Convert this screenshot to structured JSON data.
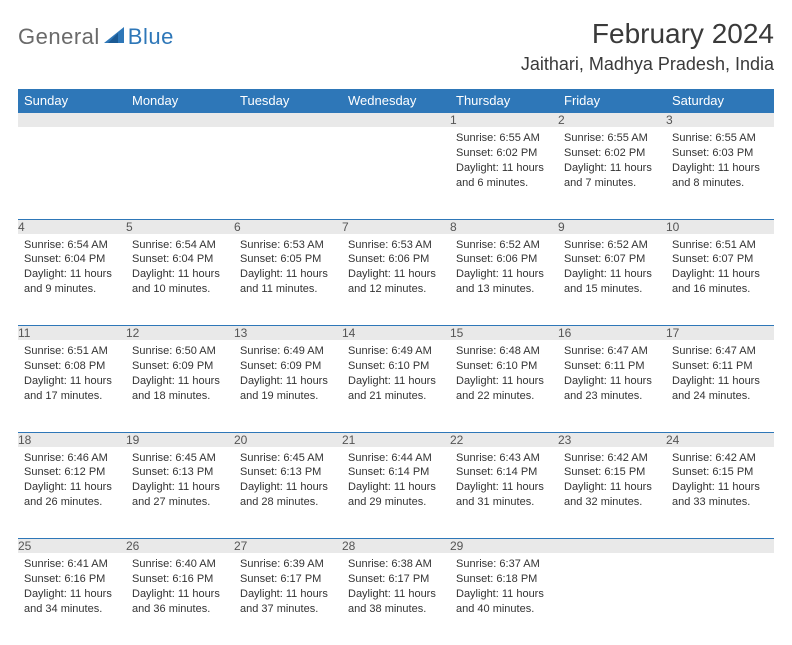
{
  "logo": {
    "general": "General",
    "blue": "Blue"
  },
  "header": {
    "month_title": "February 2024",
    "location": "Jaithari, Madhya Pradesh, India"
  },
  "colors": {
    "header_bg": "#2e77b8",
    "header_text": "#ffffff",
    "daynum_bg": "#e9e9e9",
    "body_text": "#333333",
    "rule": "#2e77b8"
  },
  "day_labels": [
    "Sunday",
    "Monday",
    "Tuesday",
    "Wednesday",
    "Thursday",
    "Friday",
    "Saturday"
  ],
  "weeks": [
    [
      null,
      null,
      null,
      null,
      {
        "n": "1",
        "sr": "Sunrise: 6:55 AM",
        "ss": "Sunset: 6:02 PM",
        "dl": "Daylight: 11 hours and 6 minutes."
      },
      {
        "n": "2",
        "sr": "Sunrise: 6:55 AM",
        "ss": "Sunset: 6:02 PM",
        "dl": "Daylight: 11 hours and 7 minutes."
      },
      {
        "n": "3",
        "sr": "Sunrise: 6:55 AM",
        "ss": "Sunset: 6:03 PM",
        "dl": "Daylight: 11 hours and 8 minutes."
      }
    ],
    [
      {
        "n": "4",
        "sr": "Sunrise: 6:54 AM",
        "ss": "Sunset: 6:04 PM",
        "dl": "Daylight: 11 hours and 9 minutes."
      },
      {
        "n": "5",
        "sr": "Sunrise: 6:54 AM",
        "ss": "Sunset: 6:04 PM",
        "dl": "Daylight: 11 hours and 10 minutes."
      },
      {
        "n": "6",
        "sr": "Sunrise: 6:53 AM",
        "ss": "Sunset: 6:05 PM",
        "dl": "Daylight: 11 hours and 11 minutes."
      },
      {
        "n": "7",
        "sr": "Sunrise: 6:53 AM",
        "ss": "Sunset: 6:06 PM",
        "dl": "Daylight: 11 hours and 12 minutes."
      },
      {
        "n": "8",
        "sr": "Sunrise: 6:52 AM",
        "ss": "Sunset: 6:06 PM",
        "dl": "Daylight: 11 hours and 13 minutes."
      },
      {
        "n": "9",
        "sr": "Sunrise: 6:52 AM",
        "ss": "Sunset: 6:07 PM",
        "dl": "Daylight: 11 hours and 15 minutes."
      },
      {
        "n": "10",
        "sr": "Sunrise: 6:51 AM",
        "ss": "Sunset: 6:07 PM",
        "dl": "Daylight: 11 hours and 16 minutes."
      }
    ],
    [
      {
        "n": "11",
        "sr": "Sunrise: 6:51 AM",
        "ss": "Sunset: 6:08 PM",
        "dl": "Daylight: 11 hours and 17 minutes."
      },
      {
        "n": "12",
        "sr": "Sunrise: 6:50 AM",
        "ss": "Sunset: 6:09 PM",
        "dl": "Daylight: 11 hours and 18 minutes."
      },
      {
        "n": "13",
        "sr": "Sunrise: 6:49 AM",
        "ss": "Sunset: 6:09 PM",
        "dl": "Daylight: 11 hours and 19 minutes."
      },
      {
        "n": "14",
        "sr": "Sunrise: 6:49 AM",
        "ss": "Sunset: 6:10 PM",
        "dl": "Daylight: 11 hours and 21 minutes."
      },
      {
        "n": "15",
        "sr": "Sunrise: 6:48 AM",
        "ss": "Sunset: 6:10 PM",
        "dl": "Daylight: 11 hours and 22 minutes."
      },
      {
        "n": "16",
        "sr": "Sunrise: 6:47 AM",
        "ss": "Sunset: 6:11 PM",
        "dl": "Daylight: 11 hours and 23 minutes."
      },
      {
        "n": "17",
        "sr": "Sunrise: 6:47 AM",
        "ss": "Sunset: 6:11 PM",
        "dl": "Daylight: 11 hours and 24 minutes."
      }
    ],
    [
      {
        "n": "18",
        "sr": "Sunrise: 6:46 AM",
        "ss": "Sunset: 6:12 PM",
        "dl": "Daylight: 11 hours and 26 minutes."
      },
      {
        "n": "19",
        "sr": "Sunrise: 6:45 AM",
        "ss": "Sunset: 6:13 PM",
        "dl": "Daylight: 11 hours and 27 minutes."
      },
      {
        "n": "20",
        "sr": "Sunrise: 6:45 AM",
        "ss": "Sunset: 6:13 PM",
        "dl": "Daylight: 11 hours and 28 minutes."
      },
      {
        "n": "21",
        "sr": "Sunrise: 6:44 AM",
        "ss": "Sunset: 6:14 PM",
        "dl": "Daylight: 11 hours and 29 minutes."
      },
      {
        "n": "22",
        "sr": "Sunrise: 6:43 AM",
        "ss": "Sunset: 6:14 PM",
        "dl": "Daylight: 11 hours and 31 minutes."
      },
      {
        "n": "23",
        "sr": "Sunrise: 6:42 AM",
        "ss": "Sunset: 6:15 PM",
        "dl": "Daylight: 11 hours and 32 minutes."
      },
      {
        "n": "24",
        "sr": "Sunrise: 6:42 AM",
        "ss": "Sunset: 6:15 PM",
        "dl": "Daylight: 11 hours and 33 minutes."
      }
    ],
    [
      {
        "n": "25",
        "sr": "Sunrise: 6:41 AM",
        "ss": "Sunset: 6:16 PM",
        "dl": "Daylight: 11 hours and 34 minutes."
      },
      {
        "n": "26",
        "sr": "Sunrise: 6:40 AM",
        "ss": "Sunset: 6:16 PM",
        "dl": "Daylight: 11 hours and 36 minutes."
      },
      {
        "n": "27",
        "sr": "Sunrise: 6:39 AM",
        "ss": "Sunset: 6:17 PM",
        "dl": "Daylight: 11 hours and 37 minutes."
      },
      {
        "n": "28",
        "sr": "Sunrise: 6:38 AM",
        "ss": "Sunset: 6:17 PM",
        "dl": "Daylight: 11 hours and 38 minutes."
      },
      {
        "n": "29",
        "sr": "Sunrise: 6:37 AM",
        "ss": "Sunset: 6:18 PM",
        "dl": "Daylight: 11 hours and 40 minutes."
      },
      null,
      null
    ]
  ]
}
